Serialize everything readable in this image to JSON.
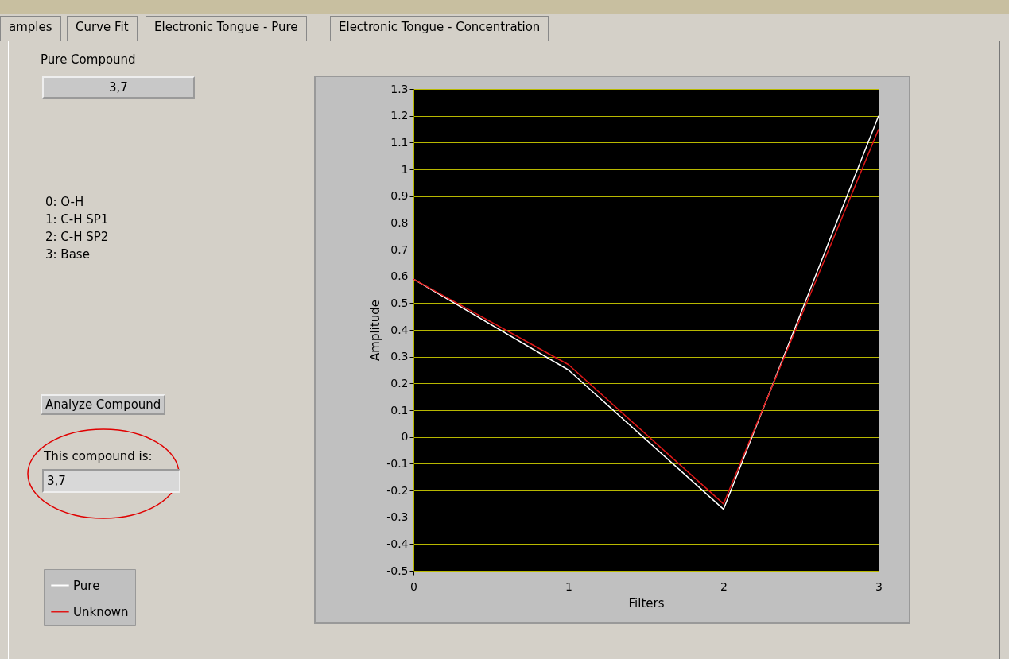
{
  "chart_data": {
    "type": "line",
    "xlabel": "Filters",
    "ylabel": "Amplitude",
    "x": [
      0,
      1,
      2,
      3
    ],
    "series": [
      {
        "name": "Pure",
        "color": "#ffffff",
        "values": [
          0.59,
          0.25,
          -0.27,
          1.2
        ]
      },
      {
        "name": "Unknown",
        "color": "#e01818",
        "values": [
          0.59,
          0.27,
          -0.25,
          1.15
        ]
      }
    ],
    "xlim": [
      0,
      3
    ],
    "xticks": [
      0,
      1,
      2,
      3
    ],
    "ylim": [
      -0.5,
      1.3
    ],
    "yticks": [
      -0.5,
      -0.4,
      -0.3,
      -0.2,
      -0.1,
      0,
      0.1,
      0.2,
      0.3,
      0.4,
      0.5,
      0.6,
      0.7,
      0.8,
      0.9,
      1,
      1.1,
      1.2,
      1.3
    ],
    "grid": true,
    "legend": "bottom left",
    "marker": "none",
    "line_style": "solid",
    "annotations": [
      "amples",
      "Curve Fit",
      "Electronic Tongue - Pure",
      "Electronic Tongue - Concentration",
      "Pure Compound",
      "3,7",
      "0: O-H",
      "1: C-H SP1",
      "2: C-H SP2",
      "3: Base",
      "Analyze Compound",
      "This compound is:",
      "3,7"
    ]
  }
}
